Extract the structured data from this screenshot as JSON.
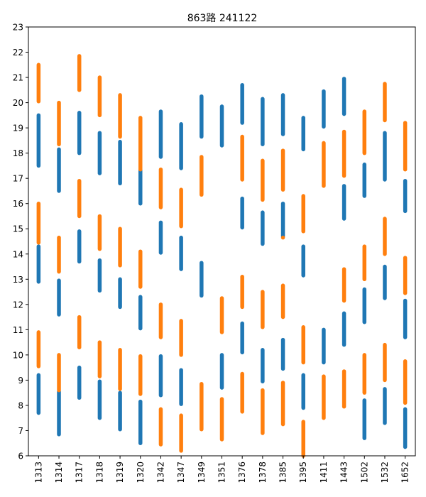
{
  "chart_data": {
    "type": "scatter",
    "title": "863路 241122",
    "xlabel": "",
    "ylabel": "",
    "ylim": [
      6,
      23
    ],
    "yticks": [
      6,
      7,
      8,
      9,
      10,
      11,
      12,
      13,
      14,
      15,
      16,
      17,
      18,
      19,
      20,
      21,
      22,
      23
    ],
    "categories": [
      "1313",
      "1314",
      "1317",
      "1318",
      "1319",
      "1320",
      "1342",
      "1347",
      "1349",
      "1351",
      "1376",
      "1378",
      "1385",
      "1395",
      "1411",
      "1443",
      "1502",
      "1532",
      "1652"
    ],
    "grid": false,
    "colors": {
      "blue": "#1f77b4",
      "orange": "#ff7f0e"
    },
    "series": [
      {
        "color": "#1f77b4",
        "segments": [
          [
            [
              7.7,
              9.2
            ],
            [
              12.9,
              14.3
            ],
            [
              17.5,
              19.5
            ]
          ],
          [
            [
              6.85,
              8.55
            ],
            [
              11.6,
              12.95
            ],
            [
              16.5,
              18.15
            ]
          ],
          [
            [
              8.3,
              9.5
            ],
            [
              13.7,
              14.9
            ],
            [
              18.0,
              19.6
            ]
          ],
          [
            [
              7.5,
              8.95
            ],
            [
              12.55,
              13.75
            ],
            [
              17.2,
              18.8
            ]
          ],
          [
            [
              7.05,
              8.5
            ],
            [
              11.9,
              13.0
            ],
            [
              16.8,
              18.45
            ]
          ],
          [
            [
              6.5,
              8.15
            ],
            [
              11.05,
              12.3
            ],
            [
              16.0,
              17.35
            ]
          ],
          [
            [
              8.4,
              9.95
            ],
            [
              14.05,
              15.25
            ],
            [
              17.85,
              19.65
            ]
          ],
          [
            [
              8.05,
              9.4
            ],
            [
              13.4,
              14.65
            ],
            [
              17.4,
              19.15
            ]
          ],
          [
            [
              12.35,
              13.65
            ],
            [
              18.65,
              20.25
            ]
          ],
          [
            [
              8.7,
              10.0
            ],
            [
              18.3,
              19.85
            ]
          ],
          [
            [
              10.1,
              11.25
            ],
            [
              15.05,
              16.2
            ],
            [
              19.2,
              20.7
            ]
          ],
          [
            [
              8.95,
              10.2
            ],
            [
              14.4,
              15.65
            ],
            [
              18.35,
              20.15
            ]
          ],
          [
            [
              9.45,
              10.6
            ],
            [
              14.7,
              16.0
            ],
            [
              18.75,
              20.3
            ]
          ],
          [
            [
              7.9,
              9.2
            ],
            [
              13.15,
              14.3
            ],
            [
              18.15,
              19.4
            ]
          ],
          [
            [
              9.7,
              11.0
            ],
            [
              19.05,
              20.45
            ]
          ],
          [
            [
              10.4,
              11.65
            ],
            [
              15.4,
              16.7
            ],
            [
              19.55,
              20.95
            ]
          ],
          [
            [
              6.7,
              8.2
            ],
            [
              11.3,
              12.6
            ],
            [
              16.3,
              17.55
            ]
          ],
          [
            [
              7.3,
              8.65
            ],
            [
              12.25,
              13.5
            ],
            [
              16.95,
              18.8
            ]
          ],
          [
            [
              6.35,
              7.85
            ],
            [
              10.7,
              12.15
            ],
            [
              15.7,
              16.9
            ]
          ]
        ]
      },
      {
        "color": "#ff7f0e",
        "segments": [
          [
            [
              9.55,
              10.9
            ],
            [
              14.45,
              16.0
            ],
            [
              20.05,
              21.5
            ]
          ],
          [
            [
              8.6,
              10.0
            ],
            [
              13.3,
              14.65
            ],
            [
              18.35,
              20.0
            ]
          ],
          [
            [
              10.3,
              11.5
            ],
            [
              15.5,
              16.9
            ],
            [
              20.5,
              21.85
            ]
          ],
          [
            [
              9.15,
              10.5
            ],
            [
              14.2,
              15.5
            ],
            [
              19.5,
              21.0
            ]
          ],
          [
            [
              8.65,
              10.2
            ],
            [
              13.55,
              15.0
            ],
            [
              18.65,
              20.3
            ]
          ],
          [
            [
              8.45,
              9.95
            ],
            [
              12.7,
              14.1
            ],
            [
              17.35,
              19.4
            ]
          ],
          [
            [
              6.45,
              7.85
            ],
            [
              10.7,
              12.0
            ],
            [
              15.85,
              17.35
            ]
          ],
          [
            [
              6.2,
              7.6
            ],
            [
              10.0,
              11.35
            ],
            [
              15.1,
              16.55
            ]
          ],
          [
            [
              7.05,
              8.85
            ],
            [
              16.35,
              17.85
            ]
          ],
          [
            [
              6.65,
              8.25
            ],
            [
              10.9,
              12.25
            ]
          ],
          [
            [
              7.75,
              9.25
            ],
            [
              11.9,
              13.1
            ],
            [
              16.95,
              18.65
            ]
          ],
          [
            [
              6.9,
              8.6
            ],
            [
              11.1,
              12.5
            ],
            [
              16.15,
              17.7
            ]
          ],
          [
            [
              7.25,
              8.9
            ],
            [
              11.5,
              12.75
            ],
            [
              14.65,
              14.65
            ],
            [
              16.55,
              18.1
            ]
          ],
          [
            [
              6.0,
              7.35
            ],
            [
              9.7,
              11.1
            ],
            [
              14.9,
              16.3
            ]
          ],
          [
            [
              7.5,
              9.15
            ],
            [
              16.7,
              18.4
            ]
          ],
          [
            [
              7.95,
              9.35
            ],
            [
              12.15,
              13.4
            ],
            [
              17.1,
              18.85
            ]
          ],
          [
            [
              8.5,
              10.0
            ],
            [
              13.0,
              14.3
            ],
            [
              18.0,
              19.65
            ]
          ],
          [
            [
              9.0,
              10.4
            ],
            [
              14.0,
              15.4
            ],
            [
              19.3,
              20.75
            ]
          ],
          [
            [
              8.1,
              9.75
            ],
            [
              12.45,
              13.85
            ],
            [
              17.35,
              19.2
            ]
          ]
        ]
      }
    ]
  }
}
